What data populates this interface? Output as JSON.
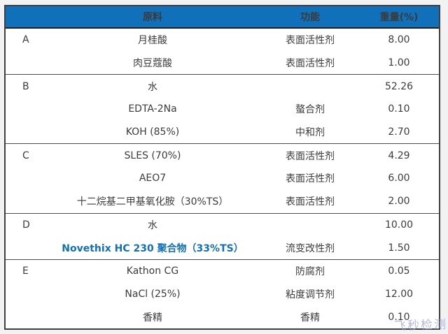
{
  "table": {
    "headers": {
      "material": "原料",
      "function": "功能",
      "weight": "重量(%)"
    },
    "groups": [
      {
        "letter": "A",
        "rows": [
          {
            "material": "月桂酸",
            "function": "表面活性剂",
            "weight": "8.00"
          },
          {
            "material": "肉豆蔻酸",
            "function": "表面活性剂",
            "weight": "1.00"
          }
        ]
      },
      {
        "letter": "B",
        "rows": [
          {
            "material": "水",
            "function": "",
            "weight": "52.26"
          },
          {
            "material": "EDTA-2Na",
            "function": "螯合剂",
            "weight": "0.10"
          },
          {
            "material": "KOH (85%)",
            "function": "中和剂",
            "weight": "2.70"
          }
        ]
      },
      {
        "letter": "C",
        "rows": [
          {
            "material": "SLES (70%)",
            "function": "表面活性剂",
            "weight": "4.29"
          },
          {
            "material": "AEO7",
            "function": "表面活性剂",
            "weight": "6.00"
          },
          {
            "material": "十二烷基二甲基氧化胺（30%TS）",
            "function": "表面活性剂",
            "weight": "2.00"
          }
        ]
      },
      {
        "letter": "D",
        "rows": [
          {
            "material": "水",
            "function": "",
            "weight": "10.00"
          },
          {
            "material": "Novethix HC 230 聚合物（33%TS）",
            "function": "流变改性剂",
            "weight": "1.50",
            "highlight": true
          }
        ]
      },
      {
        "letter": "E",
        "rows": [
          {
            "material": "Kathon CG",
            "function": "防腐剂",
            "weight": "0.05"
          },
          {
            "material": "NaCl (25%)",
            "function": "粘度调节剂",
            "weight": "12.00"
          },
          {
            "material": "香精",
            "function": "香精",
            "weight": "0.10"
          }
        ]
      }
    ]
  },
  "watermark": "飞秒检测",
  "colors": {
    "header_bg": "#1170ba",
    "header_text": "#ffffff",
    "highlight_text": "#1170ba",
    "body_text": "#3b3b3b",
    "watermark_text": "#9aa3d6",
    "border_dark": "#3f3f3f"
  }
}
